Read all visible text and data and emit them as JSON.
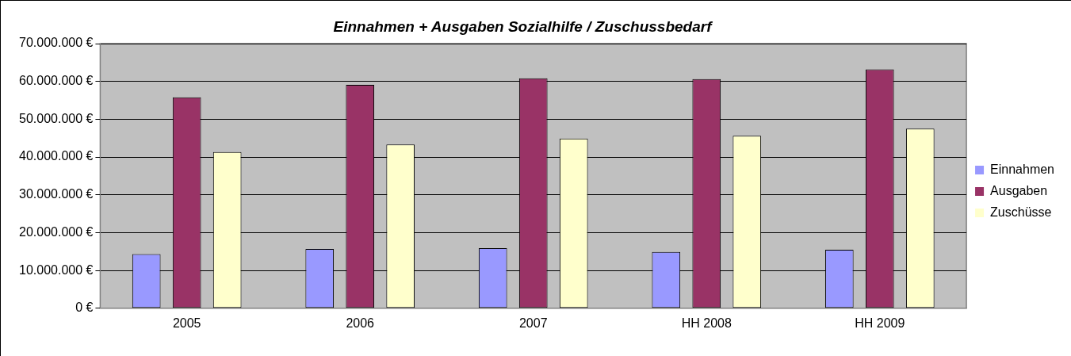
{
  "chart_data": {
    "type": "bar",
    "title": "Einnahmen + Ausgaben Sozialhilfe / Zuschussbedarf",
    "categories": [
      "2005",
      "2006",
      "2007",
      "HH 2008",
      "HH 2009"
    ],
    "series": [
      {
        "name": "Einnahmen",
        "color": "#9999ff",
        "values": [
          14300000,
          15700000,
          15900000,
          14900000,
          15500000
        ]
      },
      {
        "name": "Ausgaben",
        "color": "#993366",
        "values": [
          55800000,
          59100000,
          60800000,
          60600000,
          63200000
        ]
      },
      {
        "name": "Zuschüsse",
        "color": "#ffffcc",
        "values": [
          41300000,
          43300000,
          44900000,
          45600000,
          47500000
        ]
      }
    ],
    "ylim": [
      0,
      70000000
    ],
    "yticks": [
      {
        "value": 0,
        "label": "0 €"
      },
      {
        "value": 10000000,
        "label": "10.000.000 €"
      },
      {
        "value": 20000000,
        "label": "20.000.000 €"
      },
      {
        "value": 30000000,
        "label": "30.000.000 €"
      },
      {
        "value": 40000000,
        "label": "40.000.000 €"
      },
      {
        "value": 50000000,
        "label": "50.000.000 €"
      },
      {
        "value": 60000000,
        "label": "60.000.000 €"
      },
      {
        "value": 70000000,
        "label": "70.000.000 €"
      }
    ],
    "grid": "y",
    "legend": "right"
  }
}
